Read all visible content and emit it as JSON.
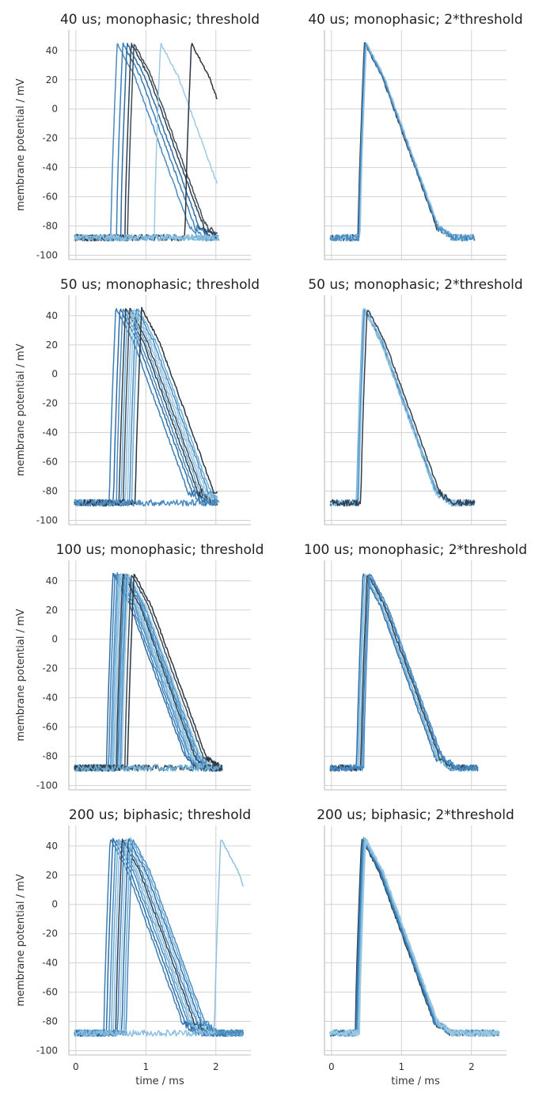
{
  "figure": {
    "ylabel": "membrane potential / mV",
    "xlabel": "time / ms"
  },
  "chart_data": [
    {
      "type": "line",
      "title": "40 us; monophasic; threshold",
      "xlim": [
        -0.1,
        2.5
      ],
      "ylim": [
        -103,
        54
      ],
      "xticks": [
        0,
        1,
        2
      ],
      "yticks": [
        40,
        20,
        0,
        -20,
        -40,
        -60,
        -80,
        -100
      ],
      "grid": true,
      "traces": [
        {
          "onset": 0.5,
          "end": 2.02,
          "color": "#4a8bc2"
        },
        {
          "onset": 0.58,
          "end": 2.02,
          "color": "#3a7fb8"
        },
        {
          "onset": 0.64,
          "end": 2.02,
          "color": "#2e6da4"
        },
        {
          "onset": 0.7,
          "end": 2.02,
          "color": "#2f3f4f"
        },
        {
          "onset": 0.74,
          "end": 2.02,
          "color": "#3b4b5a"
        },
        {
          "onset": 1.12,
          "end": 2.02,
          "color": "#9ecae1"
        },
        {
          "onset": 1.56,
          "end": 2.02,
          "color": "#2a3542"
        }
      ],
      "baseline_only": [
        {
          "color": "#6baed6"
        },
        {
          "color": "#8fbfe0"
        }
      ]
    },
    {
      "type": "line",
      "title": "40 us; monophasic; 2*threshold",
      "xlim": [
        -0.1,
        2.5
      ],
      "ylim": [
        -103,
        54
      ],
      "xticks": [
        0,
        1,
        2
      ],
      "yticks": [
        40,
        20,
        0,
        -20,
        -40,
        -60,
        -80,
        -100
      ],
      "grid": true,
      "traces": [
        {
          "onset": 0.38,
          "end": 2.05,
          "color": "#2f3f4f"
        },
        {
          "onset": 0.39,
          "end": 2.05,
          "color": "#3a7fb8"
        },
        {
          "onset": 0.4,
          "end": 2.05,
          "color": "#6baed6"
        },
        {
          "onset": 0.41,
          "end": 2.05,
          "color": "#9ecae1"
        },
        {
          "onset": 0.39,
          "end": 2.05,
          "color": "#4a8bc2"
        }
      ],
      "baseline_only": []
    },
    {
      "type": "line",
      "title": "50 us; monophasic; threshold",
      "xlim": [
        -0.1,
        2.5
      ],
      "ylim": [
        -103,
        54
      ],
      "xticks": [
        0,
        1,
        2
      ],
      "yticks": [
        40,
        20,
        0,
        -20,
        -40,
        -60,
        -80,
        -100
      ],
      "grid": true,
      "traces": [
        {
          "onset": 0.48,
          "end": 2.02,
          "color": "#3a7fb8"
        },
        {
          "onset": 0.54,
          "end": 2.02,
          "color": "#2e6da4"
        },
        {
          "onset": 0.58,
          "end": 2.02,
          "color": "#4a8bc2"
        },
        {
          "onset": 0.62,
          "end": 2.02,
          "color": "#2f3f4f"
        },
        {
          "onset": 0.65,
          "end": 2.02,
          "color": "#6baed6"
        },
        {
          "onset": 0.68,
          "end": 2.02,
          "color": "#3b4b5a"
        },
        {
          "onset": 0.71,
          "end": 2.02,
          "color": "#8fbfe0"
        },
        {
          "onset": 0.74,
          "end": 2.02,
          "color": "#9ecae1"
        },
        {
          "onset": 0.77,
          "end": 2.02,
          "color": "#4a8bc2"
        },
        {
          "onset": 0.8,
          "end": 2.02,
          "color": "#6baed6"
        },
        {
          "onset": 0.85,
          "end": 2.02,
          "color": "#2a3542"
        }
      ],
      "baseline_only": [
        {
          "color": "#4a8bc2"
        }
      ]
    },
    {
      "type": "line",
      "title": "50 us; monophasic; 2*threshold",
      "xlim": [
        -0.1,
        2.5
      ],
      "ylim": [
        -103,
        54
      ],
      "xticks": [
        0,
        1,
        2
      ],
      "yticks": [
        40,
        20,
        0,
        -20,
        -40,
        -60,
        -80,
        -100
      ],
      "grid": true,
      "traces": [
        {
          "onset": 0.36,
          "end": 2.05,
          "color": "#6baed6"
        },
        {
          "onset": 0.37,
          "end": 2.05,
          "color": "#9ecae1"
        },
        {
          "onset": 0.38,
          "end": 2.05,
          "color": "#3a7fb8"
        },
        {
          "onset": 0.39,
          "end": 2.05,
          "color": "#8fbfe0"
        },
        {
          "onset": 0.42,
          "end": 2.05,
          "color": "#2f3f4f"
        }
      ],
      "baseline_only": []
    },
    {
      "type": "line",
      "title": "100 us; monophasic; threshold",
      "xlim": [
        -0.1,
        2.5
      ],
      "ylim": [
        -103,
        54
      ],
      "xticks": [
        0,
        1,
        2
      ],
      "yticks": [
        40,
        20,
        0,
        -20,
        -40,
        -60,
        -80,
        -100
      ],
      "grid": true,
      "traces": [
        {
          "onset": 0.44,
          "end": 2.1,
          "color": "#2e6da4"
        },
        {
          "onset": 0.47,
          "end": 2.1,
          "color": "#3a7fb8"
        },
        {
          "onset": 0.5,
          "end": 2.1,
          "color": "#4a8bc2"
        },
        {
          "onset": 0.52,
          "end": 2.1,
          "color": "#6baed6"
        },
        {
          "onset": 0.54,
          "end": 2.1,
          "color": "#8fbfe0"
        },
        {
          "onset": 0.56,
          "end": 2.1,
          "color": "#9ecae1"
        },
        {
          "onset": 0.58,
          "end": 2.1,
          "color": "#2f3f4f"
        },
        {
          "onset": 0.6,
          "end": 2.1,
          "color": "#3a7fb8"
        },
        {
          "onset": 0.62,
          "end": 2.1,
          "color": "#6baed6"
        },
        {
          "onset": 0.64,
          "end": 2.1,
          "color": "#4a8bc2"
        },
        {
          "onset": 0.66,
          "end": 2.1,
          "color": "#9ecae1"
        },
        {
          "onset": 0.7,
          "end": 2.1,
          "color": "#3b4b5a"
        },
        {
          "onset": 0.74,
          "end": 2.1,
          "color": "#2a3542"
        }
      ],
      "baseline_only": [
        {
          "color": "#3b4b5a"
        },
        {
          "color": "#6baed6"
        }
      ]
    },
    {
      "type": "line",
      "title": "100 us; monophasic; 2*threshold",
      "xlim": [
        -0.1,
        2.5
      ],
      "ylim": [
        -103,
        54
      ],
      "xticks": [
        0,
        1,
        2
      ],
      "yticks": [
        40,
        20,
        0,
        -20,
        -40,
        -60,
        -80,
        -100
      ],
      "grid": true,
      "traces": [
        {
          "onset": 0.36,
          "end": 2.1,
          "color": "#2e6da4"
        },
        {
          "onset": 0.38,
          "end": 2.1,
          "color": "#6baed6"
        },
        {
          "onset": 0.4,
          "end": 2.1,
          "color": "#9ecae1"
        },
        {
          "onset": 0.42,
          "end": 2.1,
          "color": "#2f3f4f"
        },
        {
          "onset": 0.44,
          "end": 2.1,
          "color": "#3a7fb8"
        },
        {
          "onset": 0.46,
          "end": 2.1,
          "color": "#4a8bc2"
        }
      ],
      "baseline_only": []
    },
    {
      "type": "line",
      "title": "200 us; biphasic; threshold",
      "xlim": [
        -0.1,
        2.5
      ],
      "ylim": [
        -103,
        54
      ],
      "xticks": [
        0,
        1,
        2
      ],
      "yticks": [
        40,
        20,
        0,
        -20,
        -40,
        -60,
        -80,
        -100
      ],
      "grid": true,
      "traces": [
        {
          "onset": 0.4,
          "end": 2.4,
          "color": "#3a7fb8"
        },
        {
          "onset": 0.44,
          "end": 2.4,
          "color": "#2e6da4"
        },
        {
          "onset": 0.48,
          "end": 2.4,
          "color": "#4a8bc2"
        },
        {
          "onset": 0.51,
          "end": 2.4,
          "color": "#6baed6"
        },
        {
          "onset": 0.54,
          "end": 2.4,
          "color": "#8fbfe0"
        },
        {
          "onset": 0.57,
          "end": 2.4,
          "color": "#2f3f4f"
        },
        {
          "onset": 0.6,
          "end": 2.4,
          "color": "#3a7fb8"
        },
        {
          "onset": 0.63,
          "end": 2.4,
          "color": "#9ecae1"
        },
        {
          "onset": 0.66,
          "end": 2.4,
          "color": "#2e6da4"
        },
        {
          "onset": 0.69,
          "end": 2.4,
          "color": "#6baed6"
        },
        {
          "onset": 0.72,
          "end": 2.4,
          "color": "#4a8bc2"
        },
        {
          "onset": 1.98,
          "end": 2.4,
          "color": "#8fbfe0"
        }
      ],
      "baseline_only": []
    },
    {
      "type": "line",
      "title": "200 us; biphasic; 2*threshold",
      "xlim": [
        -0.1,
        2.5
      ],
      "ylim": [
        -103,
        54
      ],
      "xticks": [
        0,
        1,
        2
      ],
      "yticks": [
        40,
        20,
        0,
        -20,
        -40,
        -60,
        -80,
        -100
      ],
      "grid": true,
      "traces": [
        {
          "onset": 0.34,
          "end": 2.4,
          "color": "#2f3f4f"
        },
        {
          "onset": 0.35,
          "end": 2.4,
          "color": "#2e6da4"
        },
        {
          "onset": 0.36,
          "end": 2.4,
          "color": "#3a7fb8"
        },
        {
          "onset": 0.37,
          "end": 2.4,
          "color": "#4a8bc2"
        },
        {
          "onset": 0.38,
          "end": 2.4,
          "color": "#6baed6"
        },
        {
          "onset": 0.39,
          "end": 2.4,
          "color": "#8fbfe0"
        },
        {
          "onset": 0.4,
          "end": 2.4,
          "color": "#9ecae1"
        }
      ],
      "baseline_only": []
    }
  ]
}
